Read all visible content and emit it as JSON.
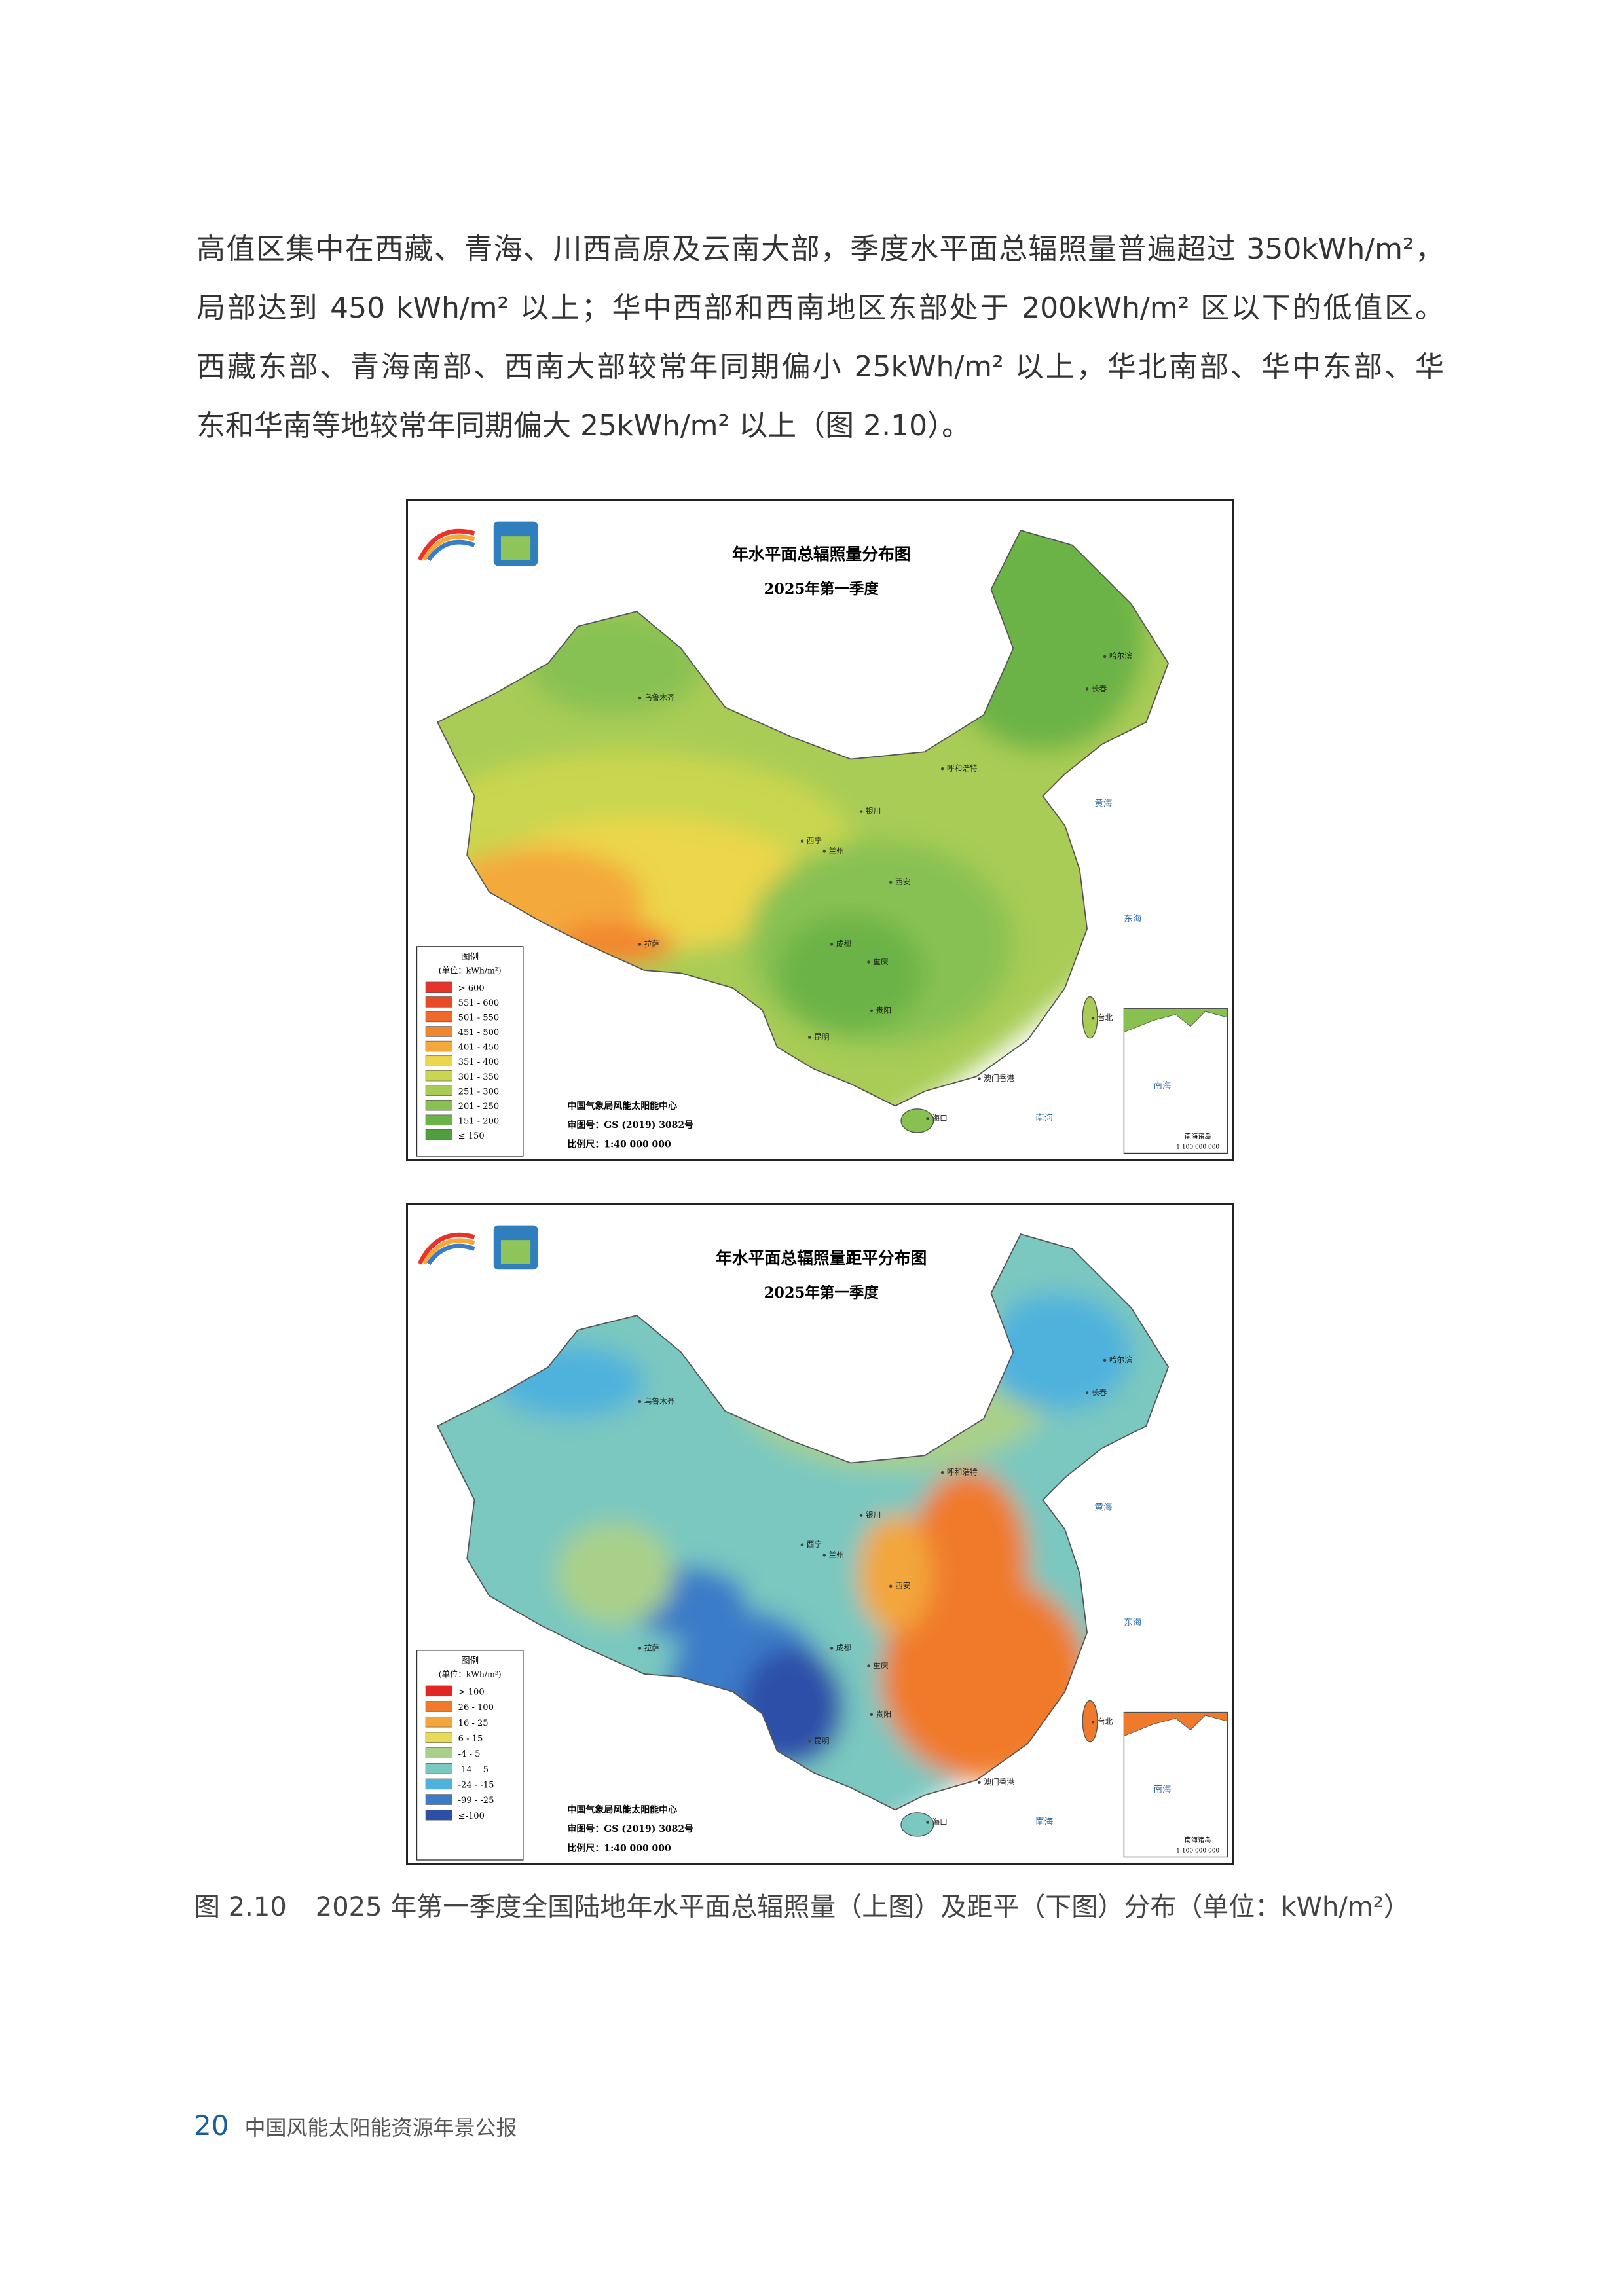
{
  "body": {
    "paragraph": [
      "高值区集中在西藏、青海、川西高原及云南大部，季度水平面总辐照量普遍超过 350kWh/m²，",
      "局部达到 450 kWh/m² 以上；华中西部和西南地区东部处于 200kWh/m² 区以下的低值区。",
      "西藏东部、青海南部、西南大部较常年同期偏小 25kWh/m² 以上，华北南部、华中东部、华",
      "东和华南等地较常年同期偏大 25kWh/m² 以上（图 2.10）。"
    ]
  },
  "figures": [
    {
      "title": "年水平面总辐照量分布图",
      "subtitle": "2025年第一季度",
      "legend": {
        "title": "图例",
        "unit": "(单位：kWh/m²)",
        "items": [
          {
            "label": "> 600",
            "color": "#e8322a"
          },
          {
            "label": "551 - 600",
            "color": "#ea4a25"
          },
          {
            "label": "501 - 550",
            "color": "#ef6a2a"
          },
          {
            "label": "451 - 500",
            "color": "#f2862f"
          },
          {
            "label": "401 - 450",
            "color": "#f4a93a"
          },
          {
            "label": "351 - 400",
            "color": "#ecd64c"
          },
          {
            "label": "301 - 350",
            "color": "#c9d650"
          },
          {
            "label": "251 - 300",
            "color": "#a8cc55"
          },
          {
            "label": "201 - 250",
            "color": "#88c152"
          },
          {
            "label": "151 - 200",
            "color": "#6cb347"
          },
          {
            "label": "≤ 150",
            "color": "#4f9e3f"
          }
        ]
      },
      "credits": [
        "中国气象局风能太阳能中心",
        "审图号：GS (2019) 3082号",
        "比例尺：1:40 000 000"
      ],
      "places": [
        "乌鲁木齐",
        "呼和浩特",
        "银川",
        "西宁",
        "兰州",
        "拉萨",
        "西安",
        "成都",
        "重庆",
        "贵阳",
        "昆明",
        "澳门香港",
        "海口",
        "长春",
        "哈尔滨",
        "台北"
      ],
      "seas": [
        "黄海",
        "东海",
        "南海"
      ],
      "inset": {
        "sea": "南海",
        "islands": "南海诸岛",
        "scale": "1:100 000 000"
      }
    },
    {
      "title": "年水平面总辐照量距平分布图",
      "subtitle": "2025年第一季度",
      "legend": {
        "title": "图例",
        "unit": "(单位：kWh/m²)",
        "items": [
          {
            "label": "> 100",
            "color": "#e3261f"
          },
          {
            "label": "26 - 100",
            "color": "#f07a2c"
          },
          {
            "label": "16 - 25",
            "color": "#f3a63b"
          },
          {
            "label": "6 - 15",
            "color": "#e8d95a"
          },
          {
            "label": "-4 - 5",
            "color": "#a9d08a"
          },
          {
            "label": "-14 - -5",
            "color": "#7ac8c0"
          },
          {
            "label": "-24 - -15",
            "color": "#4fb2dc"
          },
          {
            "label": "-99 - -25",
            "color": "#3a7cc8"
          },
          {
            "label": "≤-100",
            "color": "#2e4fa8"
          }
        ]
      },
      "credits": [
        "中国气象局风能太阳能中心",
        "审图号：GS (2019) 3082号",
        "比例尺：1:40 000 000"
      ],
      "places": [
        "乌鲁木齐",
        "呼和浩特",
        "银川",
        "西宁",
        "兰州",
        "拉萨",
        "西安",
        "成都",
        "重庆",
        "贵阳",
        "昆明",
        "澳门香港",
        "海口",
        "长春",
        "哈尔滨",
        "台北"
      ],
      "seas": [
        "黄海",
        "东海",
        "南海"
      ],
      "inset": {
        "sea": "南海",
        "islands": "南海诸岛",
        "scale": "1:100 000 000"
      }
    }
  ],
  "caption": {
    "number": "图 2.10",
    "text": "2025 年第一季度全国陆地年水平面总辐照量（上图）及距平（下图）分布（单位：kWh/m²）"
  },
  "footer": {
    "page": "20",
    "title": "中国风能太阳能资源年景公报"
  }
}
